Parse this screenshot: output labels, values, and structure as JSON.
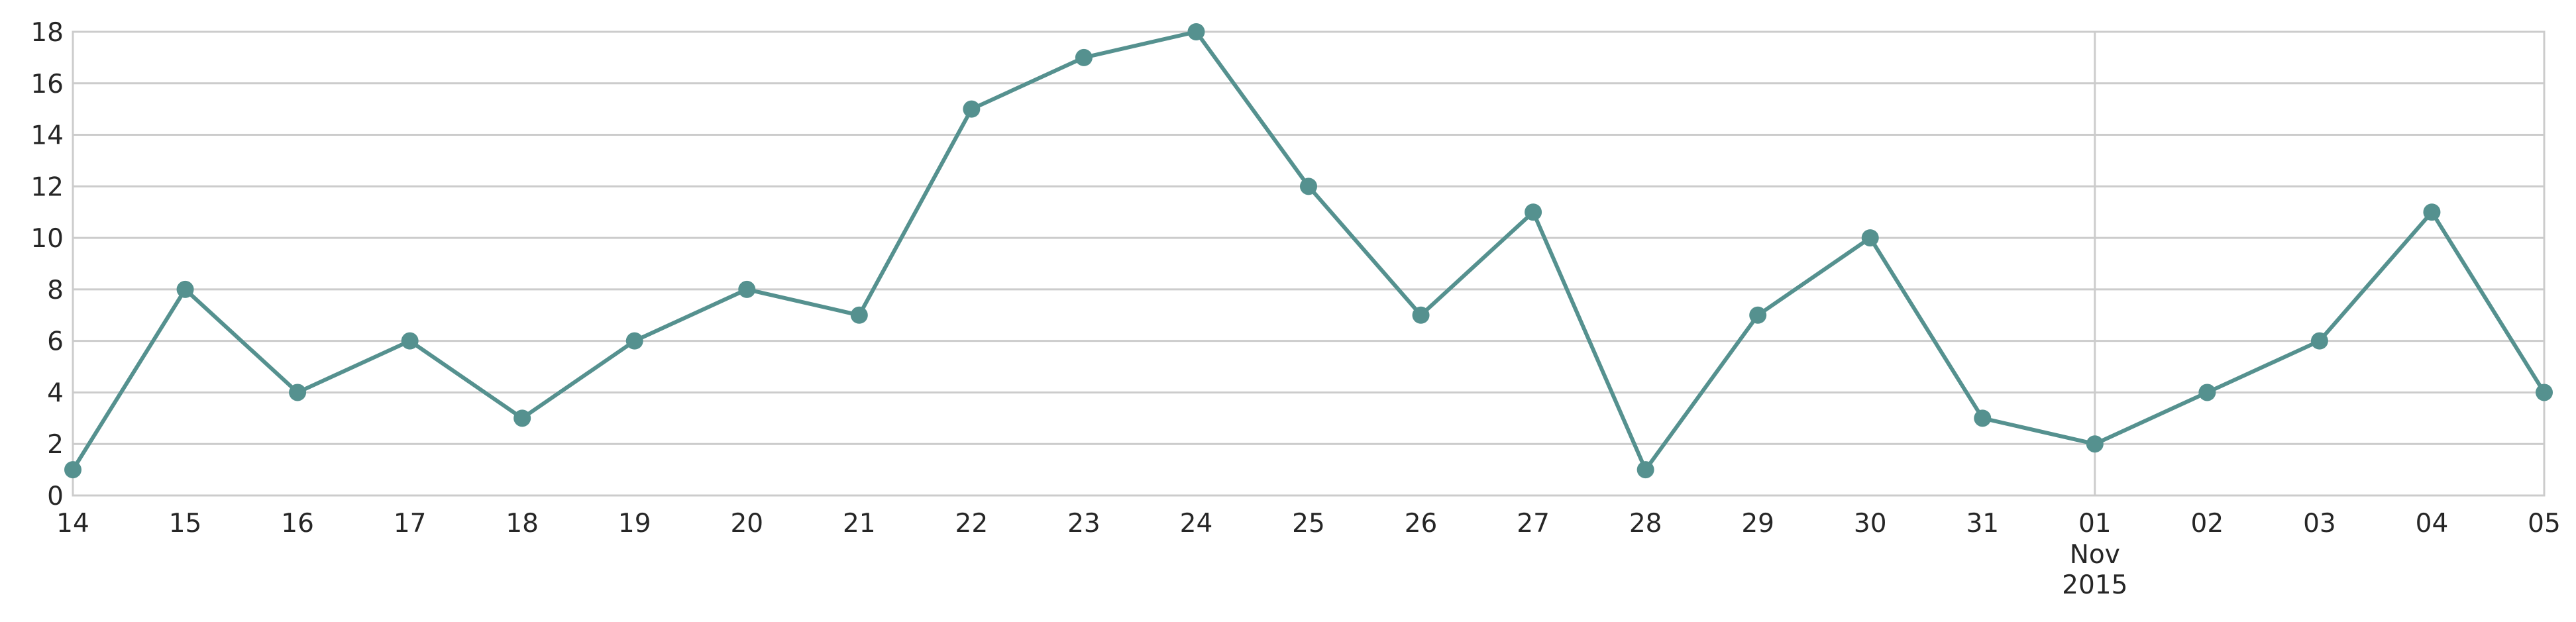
{
  "chart_data": {
    "type": "line",
    "x": [
      "2015-10-14",
      "2015-10-15",
      "2015-10-16",
      "2015-10-17",
      "2015-10-18",
      "2015-10-19",
      "2015-10-20",
      "2015-10-21",
      "2015-10-22",
      "2015-10-23",
      "2015-10-24",
      "2015-10-25",
      "2015-10-26",
      "2015-10-27",
      "2015-10-28",
      "2015-10-29",
      "2015-10-30",
      "2015-10-31",
      "2015-11-01",
      "2015-11-02",
      "2015-11-03",
      "2015-11-04",
      "2015-11-05"
    ],
    "x_tick_labels": [
      "14",
      "15",
      "16",
      "17",
      "18",
      "19",
      "20",
      "21",
      "22",
      "23",
      "24",
      "25",
      "26",
      "27",
      "28",
      "29",
      "30",
      "31",
      "01",
      "02",
      "03",
      "04",
      "05"
    ],
    "x_month_label": "Nov",
    "x_year_label": "2015",
    "series": [
      {
        "values": [
          1,
          8,
          4,
          6,
          3,
          6,
          8,
          7,
          15,
          17,
          18,
          12,
          7,
          11,
          1,
          7,
          10,
          3,
          2,
          4,
          6,
          11,
          4
        ],
        "color": "#55918f"
      }
    ],
    "y_ticks": [
      0,
      2,
      4,
      6,
      8,
      10,
      12,
      14,
      16,
      18
    ],
    "ylim": [
      0,
      18
    ],
    "title": "",
    "xlabel": "",
    "ylabel": "",
    "grid": "horizontal lines at y ticks; vertical line at month start",
    "legend": "none"
  }
}
